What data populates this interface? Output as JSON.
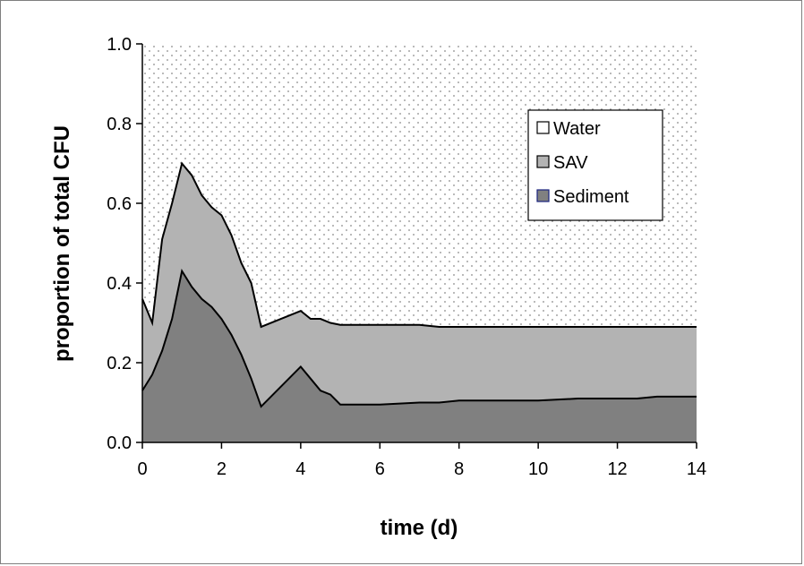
{
  "chart_data": {
    "type": "area",
    "stacked": true,
    "xlabel": "time (d)",
    "ylabel": "proportion of total CFU",
    "xlim": [
      0,
      14
    ],
    "ylim": [
      0,
      1.0
    ],
    "x_ticks": [
      "0",
      "2",
      "4",
      "6",
      "8",
      "10",
      "12",
      "14"
    ],
    "y_ticks": [
      "0.0",
      "0.2",
      "0.4",
      "0.6",
      "0.8",
      "1.0"
    ],
    "x": [
      0,
      0.25,
      0.5,
      0.75,
      1,
      1.25,
      1.5,
      1.75,
      2,
      2.25,
      2.5,
      2.75,
      3,
      3.5,
      4,
      4.25,
      4.5,
      4.75,
      5,
      5.5,
      6,
      7,
      7.5,
      8,
      9,
      10,
      11,
      12,
      12.5,
      13,
      14
    ],
    "series": [
      {
        "name": "Sediment",
        "color": "#808080",
        "values": [
          0.13,
          0.17,
          0.23,
          0.31,
          0.43,
          0.39,
          0.36,
          0.34,
          0.31,
          0.27,
          0.22,
          0.16,
          0.09,
          0.14,
          0.19,
          0.16,
          0.13,
          0.12,
          0.095,
          0.095,
          0.095,
          0.1,
          0.1,
          0.105,
          0.105,
          0.105,
          0.11,
          0.11,
          0.11,
          0.115,
          0.115
        ]
      },
      {
        "name": "SAV",
        "color": "#b3b3b3",
        "values": [
          0.23,
          0.13,
          0.28,
          0.29,
          0.27,
          0.28,
          0.26,
          0.25,
          0.26,
          0.25,
          0.23,
          0.24,
          0.2,
          0.17,
          0.14,
          0.15,
          0.18,
          0.18,
          0.2,
          0.2,
          0.2,
          0.195,
          0.19,
          0.185,
          0.185,
          0.185,
          0.18,
          0.18,
          0.18,
          0.175,
          0.175
        ]
      },
      {
        "name": "Water",
        "color": "#ffffff",
        "pattern": "dotted",
        "fill_to": 1.0
      }
    ],
    "legend": [
      "Water",
      "SAV",
      "Sediment"
    ],
    "legend_position": "right"
  }
}
